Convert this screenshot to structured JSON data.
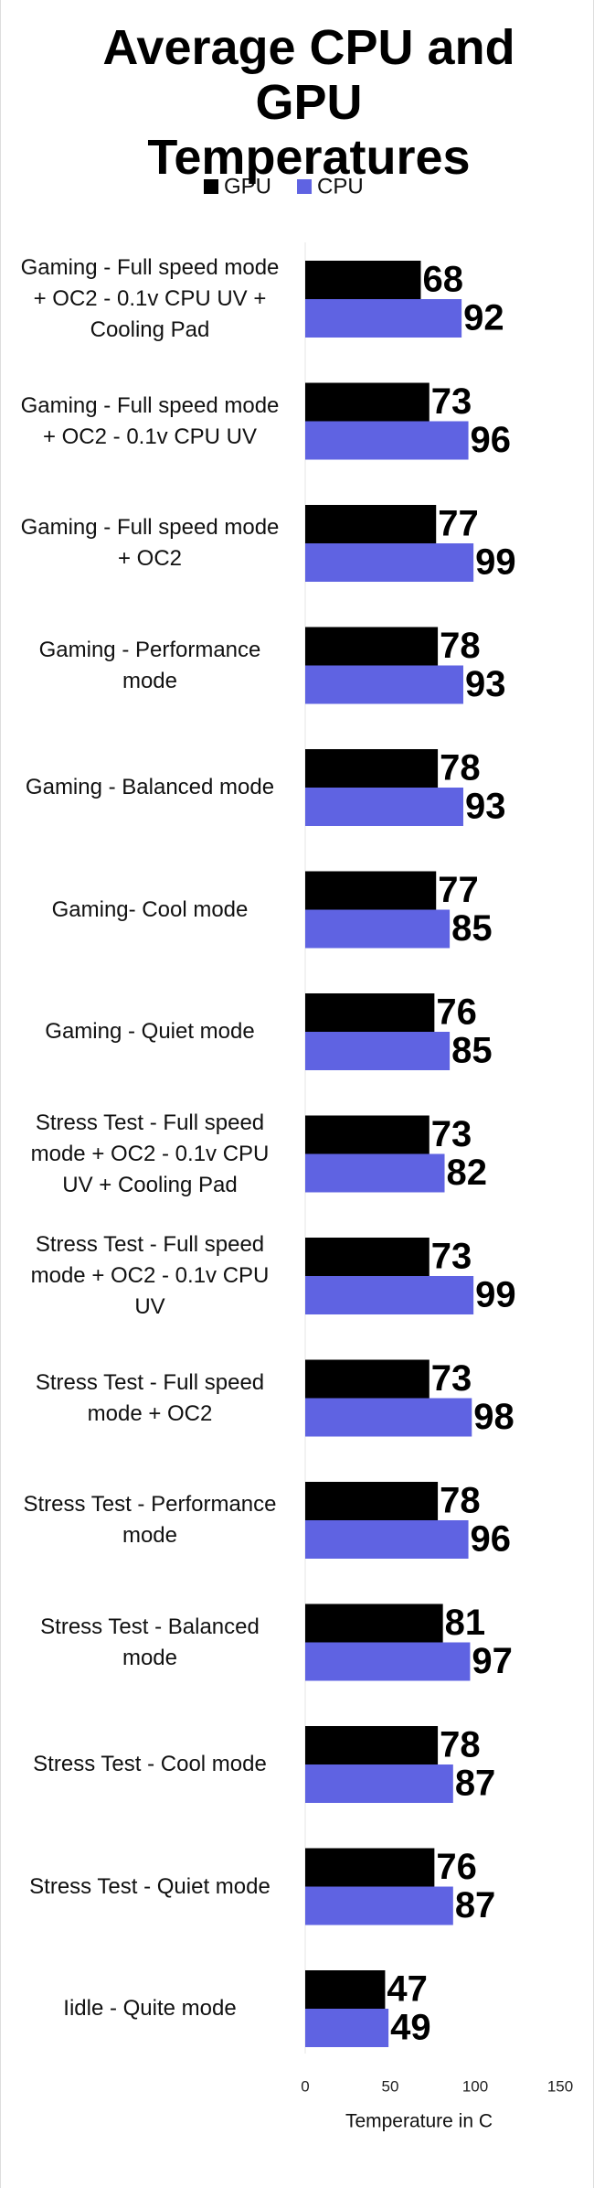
{
  "chart_data": {
    "type": "bar",
    "orientation": "horizontal",
    "title": "Average CPU and GPU Temperatures",
    "categories": [
      "Gaming - Full speed mode + OC2 - 0.1v CPU UV + Cooling Pad",
      "Gaming - Full speed mode + OC2 - 0.1v CPU UV",
      "Gaming - Full speed mode + OC2",
      "Gaming - Performance mode",
      "Gaming - Balanced mode",
      "Gaming- Cool mode",
      "Gaming - Quiet mode",
      "Stress Test - Full speed mode + OC2 - 0.1v CPU UV + Cooling Pad",
      "Stress Test - Full speed mode + OC2 - 0.1v CPU UV",
      "Stress Test - Full speed mode + OC2",
      "Stress Test - Performance mode",
      "Stress Test - Balanced mode",
      "Stress Test - Cool mode",
      "Stress Test - Quiet mode",
      "Iidle - Quite mode"
    ],
    "series": [
      {
        "name": "GPU",
        "color": "#000000",
        "values": [
          68,
          73,
          77,
          78,
          78,
          77,
          76,
          73,
          73,
          73,
          78,
          81,
          78,
          76,
          47
        ]
      },
      {
        "name": "CPU",
        "color": "#5f63e2",
        "values": [
          92,
          96,
          99,
          93,
          93,
          85,
          85,
          82,
          99,
          98,
          96,
          97,
          87,
          87,
          49
        ]
      }
    ],
    "xlim": [
      0,
      150
    ],
    "xticks": [
      0,
      50,
      100,
      150
    ],
    "xlabel": "Temperature in C",
    "legend": "top"
  }
}
